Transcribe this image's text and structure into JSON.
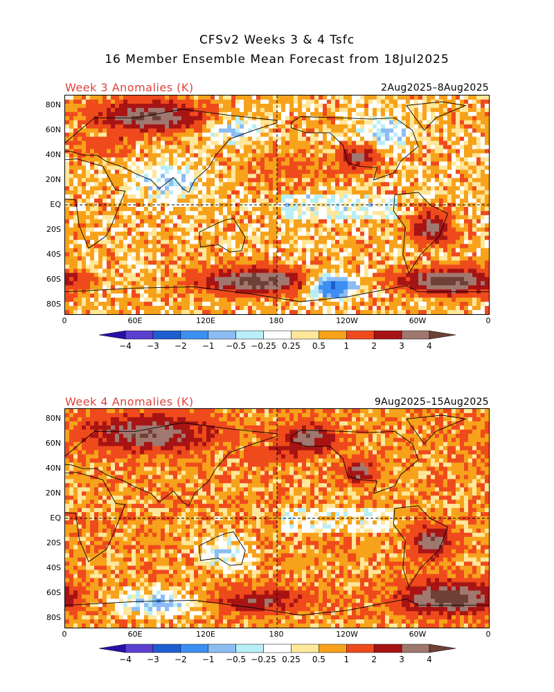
{
  "header": {
    "title_line1": "CFSv2 Weeks 3 & 4 Tsfc",
    "title_line2": "16 Member Ensemble Mean Forecast from 18Jul2025"
  },
  "palette": {
    "bins": [
      "#2a0fa8",
      "#5a3fd0",
      "#1e5fd0",
      "#3c8ff0",
      "#8cbcf4",
      "#b8eef8",
      "#ffffff",
      "#ffe79a",
      "#f7a21b",
      "#ef4a1c",
      "#a81414",
      "#a07870",
      "#6e4036"
    ],
    "labels": [
      "-4",
      "-3",
      "-2",
      "-1",
      "-0.5",
      "-0.25",
      "0.25",
      "0.5",
      "1",
      "2",
      "3",
      "4"
    ]
  },
  "axes": {
    "lat_labels": [
      "80N",
      "60N",
      "40N",
      "20N",
      "EQ",
      "20S",
      "40S",
      "60S",
      "80S"
    ],
    "lon_labels": [
      "0",
      "60E",
      "120E",
      "180",
      "120W",
      "60W",
      "0"
    ]
  },
  "chart_data": [
    {
      "type": "heatmap",
      "title": "Week 3 Anomalies (K)",
      "date_range": "2Aug2025–8Aug2025",
      "variable": "Tsfc anomaly",
      "units": "K",
      "color_levels": [
        -4,
        -3,
        -2,
        -1,
        -0.5,
        -0.25,
        0.25,
        0.5,
        1,
        2,
        3,
        4
      ],
      "lon_range": [
        0,
        360
      ],
      "lat_range": [
        -90,
        90
      ],
      "features": [
        {
          "region": "Arctic Eurasia",
          "lat": [
            65,
            80
          ],
          "lon": [
            30,
            110
          ],
          "anom": 3.5
        },
        {
          "region": "Southern Ocean Pacific",
          "lat": [
            -65,
            -55
          ],
          "lon": [
            120,
            200
          ],
          "anom": 4
        },
        {
          "region": "Southern Ocean Atlantic",
          "lat": [
            -65,
            -55
          ],
          "lon": [
            290,
            360
          ],
          "anom": 4
        },
        {
          "region": "Southern Ocean south of Pacific",
          "lat": [
            -68,
            -60
          ],
          "lon": [
            210,
            240
          ],
          "anom": -3
        },
        {
          "region": "North Pacific",
          "lat": [
            20,
            45
          ],
          "lon": [
            150,
            230
          ],
          "anom": 0.5
        },
        {
          "region": "South Asia",
          "lat": [
            10,
            30
          ],
          "lon": [
            60,
            110
          ],
          "anom": -1
        },
        {
          "region": "Eastern Siberia",
          "lat": [
            55,
            70
          ],
          "lon": [
            120,
            160
          ],
          "anom": -1
        },
        {
          "region": "Canada",
          "lat": [
            50,
            70
          ],
          "lon": [
            250,
            290
          ],
          "anom": -1
        },
        {
          "region": "Western US",
          "lat": [
            35,
            45
          ],
          "lon": [
            240,
            255
          ],
          "anom": 2.5
        },
        {
          "region": "South America",
          "lat": [
            -25,
            -10
          ],
          "lon": [
            300,
            320
          ],
          "anom": 3
        }
      ]
    },
    {
      "type": "heatmap",
      "title": "Week 4 Anomalies (K)",
      "date_range": "9Aug2025–15Aug2025",
      "variable": "Tsfc anomaly",
      "units": "K",
      "color_levels": [
        -4,
        -3,
        -2,
        -1,
        -0.5,
        -0.25,
        0.25,
        0.5,
        1,
        2,
        3,
        4
      ],
      "lon_range": [
        0,
        360
      ],
      "lat_range": [
        -90,
        90
      ],
      "features": [
        {
          "region": "Arctic Eurasia",
          "lat": [
            60,
            80
          ],
          "lon": [
            20,
            120
          ],
          "anom": 3
        },
        {
          "region": "Southern Ocean Atlantic",
          "lat": [
            -70,
            -55
          ],
          "lon": [
            290,
            360
          ],
          "anom": 4
        },
        {
          "region": "Southern Ocean Pacific",
          "lat": [
            -70,
            -60
          ],
          "lon": [
            130,
            200
          ],
          "anom": 2
        },
        {
          "region": "East Antarctic coast",
          "lat": [
            -72,
            -62
          ],
          "lon": [
            40,
            110
          ],
          "anom": -1.5
        },
        {
          "region": "Australia",
          "lat": [
            -35,
            -15
          ],
          "lon": [
            115,
            150
          ],
          "anom": -1
        },
        {
          "region": "North Pacific",
          "lat": [
            25,
            45
          ],
          "lon": [
            130,
            180
          ],
          "anom": 0
        },
        {
          "region": "Alaska",
          "lat": [
            60,
            72
          ],
          "lon": [
            190,
            220
          ],
          "anom": 3
        },
        {
          "region": "Western US",
          "lat": [
            35,
            45
          ],
          "lon": [
            240,
            255
          ],
          "anom": 2.5
        },
        {
          "region": "South America",
          "lat": [
            -25,
            -10
          ],
          "lon": [
            300,
            320
          ],
          "anom": 3
        }
      ]
    }
  ]
}
